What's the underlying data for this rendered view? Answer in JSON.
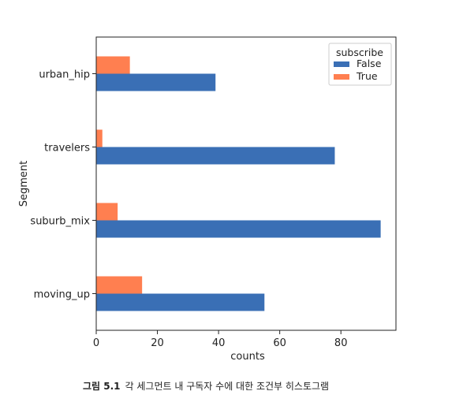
{
  "chart_data": {
    "type": "bar",
    "orientation": "horizontal",
    "categories": [
      "moving_up",
      "suburb_mix",
      "travelers",
      "urban_hip"
    ],
    "series": [
      {
        "name": "False",
        "values": [
          55,
          93,
          78,
          39
        ],
        "color": "#3a6fb5"
      },
      {
        "name": "True",
        "values": [
          15,
          7,
          2,
          11
        ],
        "color": "#ff7f50"
      }
    ],
    "xlabel": "counts",
    "ylabel": "Segment",
    "xlim": [
      0,
      98
    ],
    "xticks": [
      0,
      20,
      40,
      60,
      80
    ],
    "legend": {
      "title": "subscribe",
      "placement": "top-right"
    },
    "grid": false
  },
  "caption": {
    "figure_label": "그림 5.1",
    "text": "각 세그먼트 내 구독자 수에 대한 조건부 히스토그램"
  }
}
